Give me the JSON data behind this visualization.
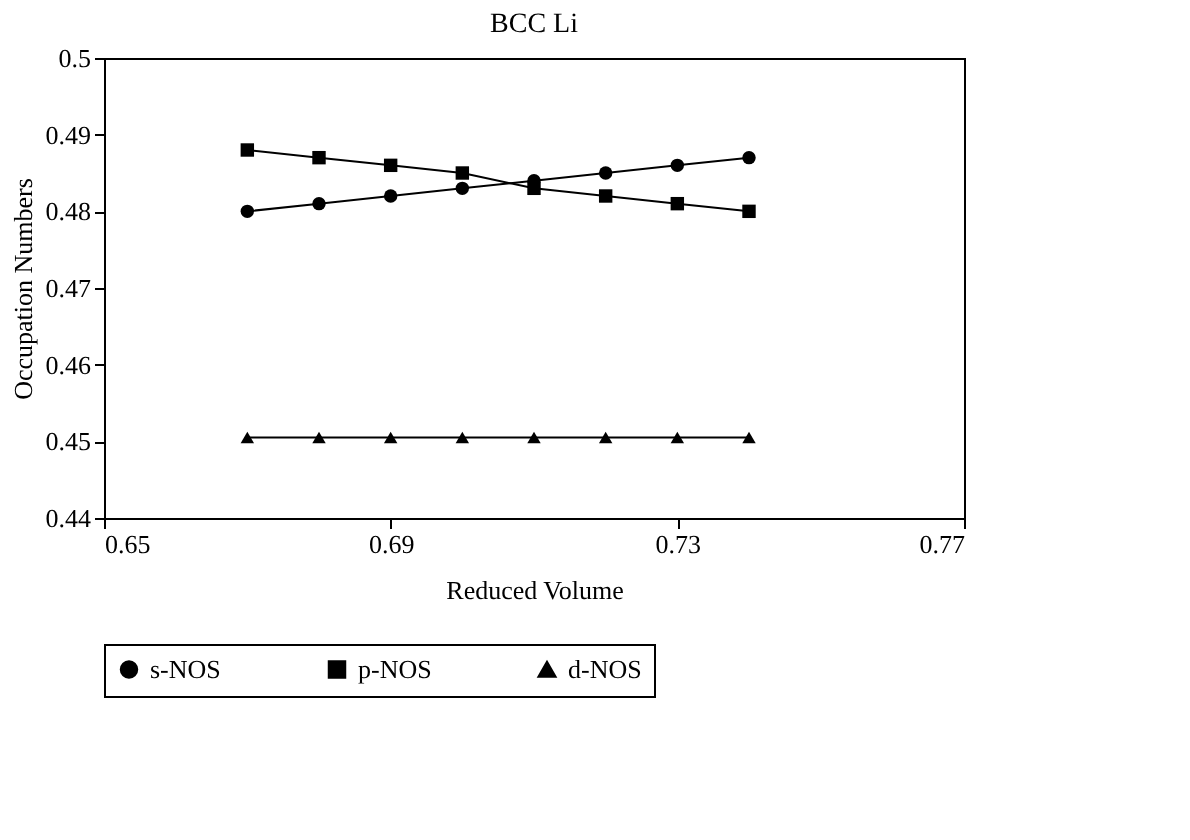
{
  "chart_data": {
    "type": "line",
    "title": "BCC Li",
    "xlabel": "Reduced Volume",
    "ylabel": "Occupation Numbers",
    "x": [
      0.67,
      0.68,
      0.69,
      0.7,
      0.71,
      0.72,
      0.73,
      0.74
    ],
    "series": [
      {
        "name": "s-NOS",
        "color": "#000000",
        "marker": "circle",
        "values": [
          0.48,
          0.481,
          0.482,
          0.483,
          0.484,
          0.485,
          0.486,
          0.487
        ]
      },
      {
        "name": "p-NOS",
        "color": "#000000",
        "marker": "square",
        "values": [
          0.488,
          0.487,
          0.486,
          0.485,
          0.483,
          0.482,
          0.481,
          0.48
        ]
      },
      {
        "name": "d-NOS",
        "color": "#000000",
        "marker": "triangle",
        "values": [
          0.4505,
          0.4505,
          0.4505,
          0.4505,
          0.4505,
          0.4505,
          0.4505,
          0.4505
        ]
      }
    ],
    "xlim": [
      0.65,
      0.77
    ],
    "xticks": [
      0.65,
      0.69,
      0.73,
      0.77
    ],
    "ylim": [
      0.44,
      0.5
    ],
    "yticks": [
      0.44,
      0.45,
      0.46,
      0.47,
      0.48,
      0.49,
      0.5
    ],
    "grid": false,
    "legend": "bottom",
    "line_style": "solid"
  }
}
